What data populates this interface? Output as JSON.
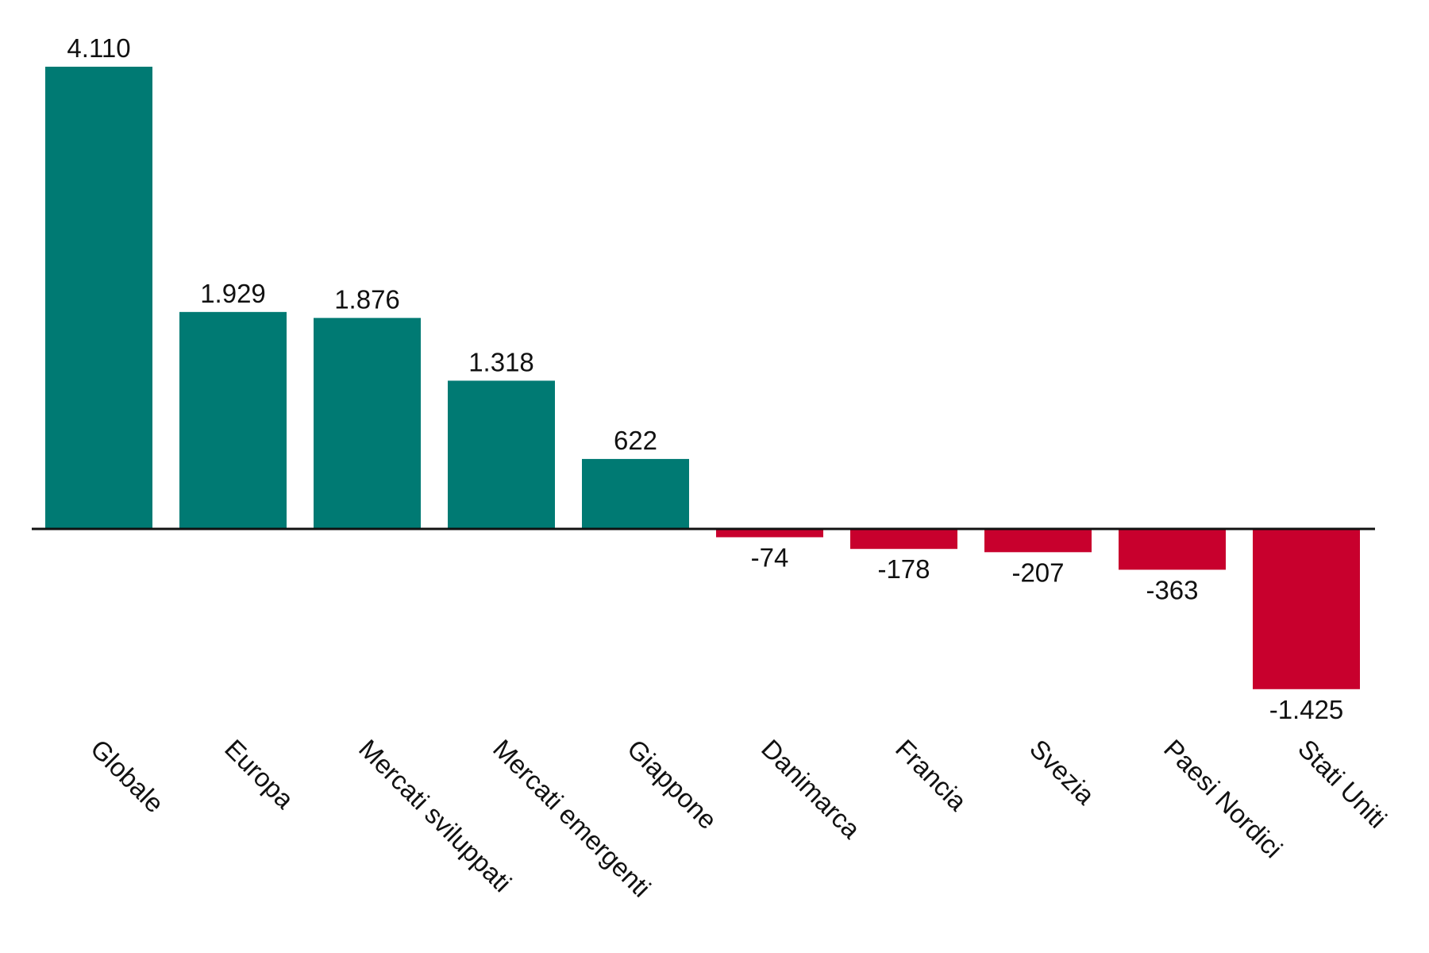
{
  "chart_data": {
    "type": "bar",
    "categories": [
      "Globale",
      "Europa",
      "Mercati sviluppati",
      "Mercati emergenti",
      "Giappone",
      "Danimarca",
      "Francia",
      "Svezia",
      "Paesi Nordici",
      "Stati Uniti"
    ],
    "values": [
      4110,
      1929,
      1876,
      1318,
      622,
      -74,
      -178,
      -207,
      -363,
      -1425
    ],
    "value_labels": [
      "4.110",
      "1.929",
      "1.876",
      "1.318",
      "622",
      "-74",
      "-178",
      "-207",
      "-363",
      "-1.425"
    ],
    "ylim": [
      -1425,
      4110
    ],
    "grid": false,
    "colors": {
      "positive": "#007A73",
      "negative": "#C8002D",
      "axis": "#111111"
    }
  }
}
